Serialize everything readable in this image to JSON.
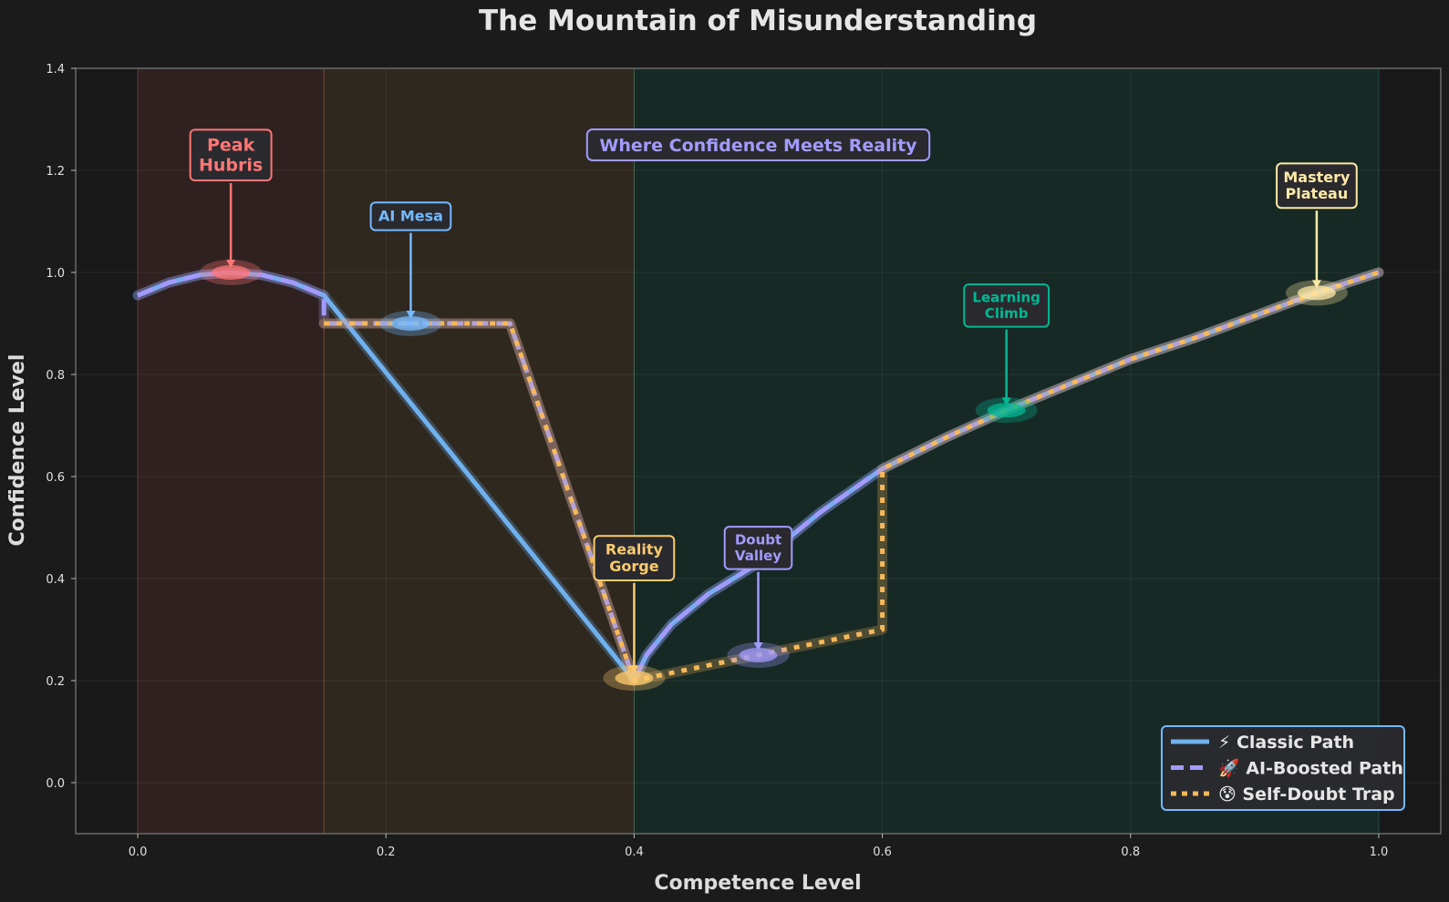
{
  "chart_data": {
    "type": "line",
    "title": "The Mountain of Misunderstanding",
    "xlabel": "Competence Level",
    "ylabel": "Confidence Level",
    "xlim": [
      -0.05,
      1.05
    ],
    "ylim": [
      -0.1,
      1.4
    ],
    "xticks": [
      "0.0",
      "0.2",
      "0.4",
      "0.6",
      "0.8",
      "1.0"
    ],
    "yticks": [
      "0.0",
      "0.2",
      "0.4",
      "0.6",
      "0.8",
      "1.0",
      "1.2",
      "1.4"
    ],
    "grid": true,
    "regions": [
      {
        "x": [
          0.0,
          0.15
        ],
        "color": "#ff6b6b"
      },
      {
        "x": [
          0.15,
          0.4
        ],
        "color": "#f6ad55"
      },
      {
        "x": [
          0.4,
          1.0
        ],
        "color": "#00b894"
      }
    ],
    "series": [
      {
        "name": "⚡ Classic Path",
        "color": "#6fb1ee",
        "style": "solid",
        "x": [
          0.0,
          0.025,
          0.05,
          0.075,
          0.1,
          0.125,
          0.15,
          0.4,
          0.41,
          0.43,
          0.46,
          0.5,
          0.55,
          0.6,
          0.65,
          0.7,
          0.75,
          0.8,
          0.85,
          0.9,
          0.95,
          1.0
        ],
        "y": [
          0.955,
          0.98,
          0.995,
          1.0,
          0.995,
          0.98,
          0.955,
          0.2,
          0.25,
          0.31,
          0.37,
          0.43,
          0.53,
          0.615,
          0.675,
          0.73,
          0.78,
          0.83,
          0.87,
          0.915,
          0.96,
          1.0
        ]
      },
      {
        "name": "🚀 AI-Boosted Path",
        "color": "#a29bfe",
        "style": "dashed",
        "x": [
          0.0,
          0.025,
          0.05,
          0.075,
          0.1,
          0.125,
          0.15,
          0.15,
          0.3,
          0.4,
          0.41,
          0.43,
          0.46,
          0.5,
          0.55,
          0.6,
          0.65,
          0.7,
          0.75,
          0.8,
          0.85,
          0.9,
          0.95,
          1.0
        ],
        "y": [
          0.955,
          0.98,
          0.995,
          1.0,
          0.995,
          0.98,
          0.955,
          0.9,
          0.9,
          0.2,
          0.25,
          0.31,
          0.37,
          0.43,
          0.53,
          0.615,
          0.675,
          0.73,
          0.78,
          0.83,
          0.87,
          0.915,
          0.96,
          1.0
        ]
      },
      {
        "name": "😰 Self-Doubt Trap",
        "color": "#f6b85a",
        "style": "dotted",
        "x": [
          0.15,
          0.3,
          0.4,
          0.6,
          0.6,
          0.65,
          0.7,
          0.75,
          0.8,
          0.85,
          0.9,
          0.95,
          1.0
        ],
        "y": [
          0.9,
          0.9,
          0.2,
          0.3,
          0.615,
          0.675,
          0.73,
          0.78,
          0.83,
          0.87,
          0.915,
          0.96,
          1.0
        ]
      }
    ],
    "annotations": [
      {
        "label": "Peak\nHubris",
        "x": 0.075,
        "y": 1.0,
        "text_y": 1.23,
        "color": "#ff7675",
        "fs": 19
      },
      {
        "label": "AI Mesa",
        "x": 0.22,
        "y": 0.9,
        "text_y": 1.11,
        "color": "#74b9ff",
        "fs": 16
      },
      {
        "label": "Reality\nGorge",
        "x": 0.4,
        "y": 0.205,
        "text_y": 0.44,
        "color": "#fdcb6e",
        "fs": 16
      },
      {
        "label": "Doubt\nValley",
        "x": 0.5,
        "y": 0.25,
        "text_y": 0.46,
        "color": "#a29bfe",
        "fs": 15
      },
      {
        "label": "Learning\nClimb",
        "x": 0.7,
        "y": 0.73,
        "text_y": 0.935,
        "color": "#00b894",
        "fs": 15
      },
      {
        "label": "Mastery\nPlateau",
        "x": 0.95,
        "y": 0.96,
        "text_y": 1.17,
        "color": "#ffeaa7",
        "fs": 16
      }
    ],
    "center_note": {
      "label": "Where Confidence Meets Reality",
      "x": 0.5,
      "y": 1.25,
      "color": "#a29bfe"
    },
    "legend": {
      "placement": "lower-right",
      "border": "#74b9ff"
    }
  }
}
